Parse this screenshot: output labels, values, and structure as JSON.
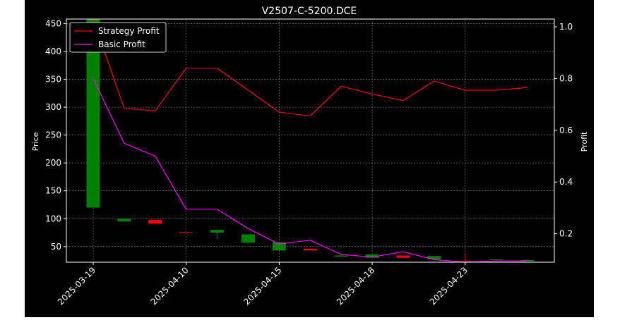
{
  "chart_data": {
    "type": "candlestick+line",
    "title": "V2507-C-5200.DCE",
    "ylabel_left": "Price",
    "ylabel_right": "Profit",
    "ylim_left": [
      22,
      458
    ],
    "ylim_right": [
      0.09,
      1.03
    ],
    "yticks_left": [
      50,
      100,
      150,
      200,
      250,
      300,
      350,
      400,
      450
    ],
    "yticks_right": [
      0.2,
      0.4,
      0.6,
      0.8,
      1.0
    ],
    "ytick_labels_right": [
      "0.2",
      "0.4",
      "0.6",
      "0.8",
      "1.0"
    ],
    "x_tick_labels": [
      "2025-03-19",
      "2025-04-10",
      "2025-04-15",
      "2025-04-18",
      "2025-04-23"
    ],
    "x_tick_indices": [
      0,
      3,
      6,
      9,
      12
    ],
    "grid": true,
    "legend_position": "top-left",
    "legend": [
      "Strategy Profit",
      "Basic Profit"
    ],
    "colors": {
      "up": "#008000",
      "down": "#ff0000",
      "strategy": "#ff0000",
      "basic": "#ff00ff",
      "grid": "#888888",
      "axes": "#ffffff"
    },
    "candles": [
      {
        "open": 120,
        "close": 458,
        "high": 458,
        "low": 120
      },
      {
        "open": 95,
        "close": 100,
        "high": 100,
        "low": 95
      },
      {
        "open": 98,
        "close": 91,
        "high": 98,
        "low": 91
      },
      {
        "open": 76,
        "close": 75,
        "high": 76,
        "low": 75
      },
      {
        "open": 75,
        "close": 80,
        "high": 80,
        "low": 63
      },
      {
        "open": 57,
        "close": 72,
        "high": 72,
        "low": 57
      },
      {
        "open": 43,
        "close": 58,
        "high": 58,
        "low": 43
      },
      {
        "open": 46,
        "close": 43,
        "high": 46,
        "low": 43
      },
      {
        "open": 32,
        "close": 34,
        "high": 34,
        "low": 32
      },
      {
        "open": 30,
        "close": 36,
        "high": 36,
        "low": 30
      },
      {
        "open": 34,
        "close": 30,
        "high": 34,
        "low": 30
      },
      {
        "open": 27,
        "close": 33,
        "high": 33,
        "low": 27
      },
      {
        "open": 24,
        "close": 22,
        "high": 38,
        "low": 22
      },
      {
        "open": 26,
        "close": 27,
        "high": 27,
        "low": 26
      },
      {
        "open": 24,
        "close": 26,
        "high": 27,
        "low": 24
      }
    ],
    "series": [
      {
        "name": "Strategy Profit",
        "values": [
          1.03,
          0.685,
          0.675,
          0.84,
          0.84,
          0.755,
          0.67,
          0.655,
          0.77,
          0.74,
          0.715,
          0.79,
          0.755,
          0.755,
          0.765
        ]
      },
      {
        "name": "Basic Profit",
        "values": [
          0.8,
          0.55,
          0.5,
          0.295,
          0.295,
          0.22,
          0.16,
          0.175,
          0.12,
          0.11,
          0.13,
          0.1,
          0.09,
          0.095,
          0.095
        ]
      }
    ]
  }
}
